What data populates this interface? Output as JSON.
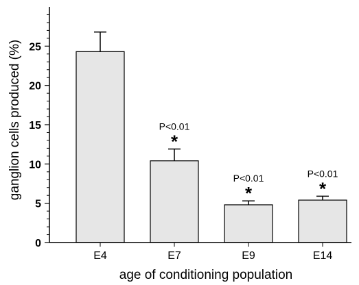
{
  "chart_data": {
    "type": "bar",
    "categories": [
      "E4",
      "E7",
      "E9",
      "E14"
    ],
    "values": [
      24.3,
      10.4,
      4.8,
      5.4
    ],
    "error_upper": [
      26.8,
      11.9,
      5.3,
      5.9
    ],
    "annotations": [
      "",
      "P<0.01",
      "P<0.01",
      "P<0.01"
    ],
    "markers": [
      "",
      "*",
      "*",
      "*"
    ],
    "xlabel": "age of conditioning population",
    "ylabel": "ganglion cells produced (%)",
    "ylim": [
      0,
      30
    ],
    "yticks": [
      0,
      5,
      10,
      15,
      20,
      25
    ],
    "grid": false,
    "colors": {
      "bar_fill": "#e6e6e6",
      "bar_stroke": "#000000",
      "axis": "#000000"
    }
  }
}
